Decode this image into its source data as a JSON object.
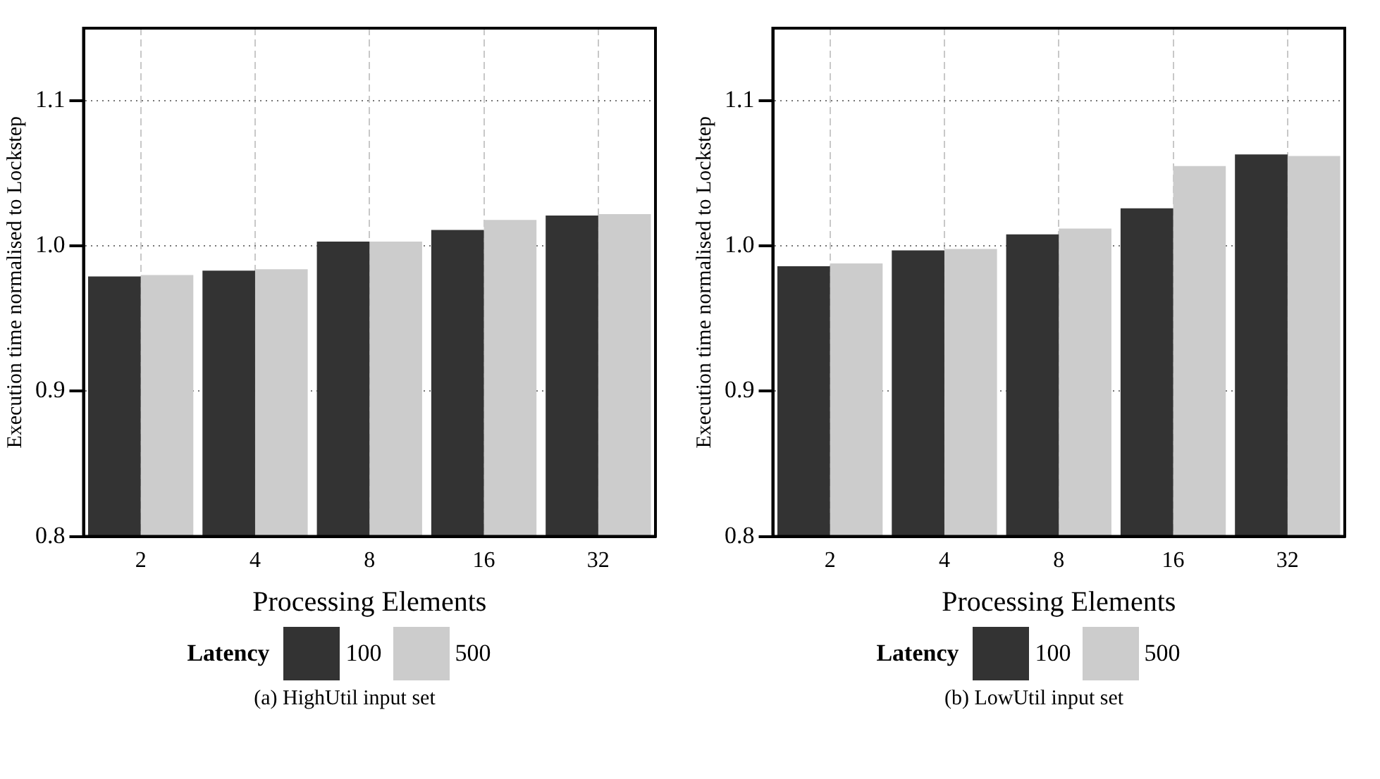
{
  "chart_data": [
    {
      "type": "bar",
      "title": "(a) HighUtil input set",
      "xlabel": "Processing Elements",
      "ylabel": "Execution time normalised to Lockstep",
      "legend_title": "Latency",
      "legend": "bottom",
      "grid": true,
      "categories": [
        "2",
        "4",
        "8",
        "16",
        "32"
      ],
      "ylim": [
        0.8,
        1.15
      ],
      "yticks": [
        0.8,
        0.9,
        {
          "value": 1.0,
          "label": "1.0"
        },
        1.1
      ],
      "series": [
        {
          "name": "100",
          "color": "#333333",
          "values": [
            0.979,
            0.983,
            1.003,
            1.011,
            1.021
          ]
        },
        {
          "name": "500",
          "color": "#cccccc",
          "values": [
            0.98,
            0.984,
            1.003,
            1.018,
            1.022
          ]
        }
      ]
    },
    {
      "type": "bar",
      "title": "(b) LowUtil input set",
      "xlabel": "Processing Elements",
      "ylabel": "Execution time normalised to Lockstep",
      "legend_title": "Latency",
      "legend": "bottom",
      "grid": true,
      "categories": [
        "2",
        "4",
        "8",
        "16",
        "32"
      ],
      "ylim": [
        0.8,
        1.15
      ],
      "yticks": [
        0.8,
        0.9,
        {
          "value": 1.0,
          "label": "1.0"
        },
        1.1
      ],
      "series": [
        {
          "name": "100",
          "color": "#333333",
          "values": [
            0.986,
            0.997,
            1.008,
            1.026,
            1.063
          ]
        },
        {
          "name": "500",
          "color": "#cccccc",
          "values": [
            0.988,
            0.998,
            1.012,
            1.055,
            1.062
          ]
        }
      ]
    }
  ]
}
